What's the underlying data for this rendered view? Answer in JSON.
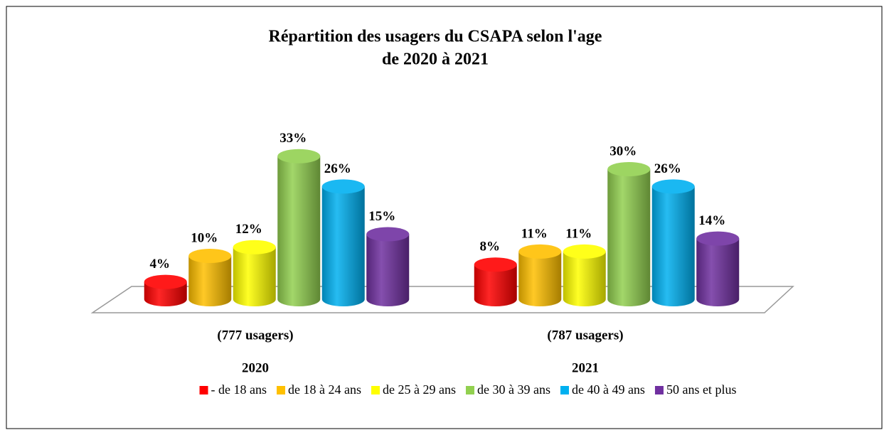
{
  "chart_data": {
    "type": "bar3d",
    "title": "Répartition des usagers du CSAPA selon l'age",
    "subtitle": "de 2020 à 2021",
    "categories": [
      "2020",
      "2021"
    ],
    "category_notes": [
      "(777 usagers)",
      "(787 usagers)"
    ],
    "series": [
      {
        "name": "- de 18 ans",
        "color": "#ff0000",
        "values": [
          4,
          8
        ],
        "value_labels": [
          "4%",
          "8%"
        ]
      },
      {
        "name": "de 18 à 24 ans",
        "color": "#ffc000",
        "values": [
          10,
          11
        ],
        "value_labels": [
          "10%",
          "11%"
        ]
      },
      {
        "name": "de 25 à 29 ans",
        "color": "#ffff00",
        "values": [
          12,
          11
        ],
        "value_labels": [
          "12%",
          "11%"
        ]
      },
      {
        "name": "de 30 à 39 ans",
        "color": "#92d050",
        "values": [
          33,
          30
        ],
        "value_labels": [
          "33%",
          "30%"
        ]
      },
      {
        "name": "de 40 à 49 ans",
        "color": "#00b0f0",
        "values": [
          26,
          26
        ],
        "value_labels": [
          "26%",
          "26%"
        ]
      },
      {
        "name": "50 ans et plus",
        "color": "#7030a0",
        "values": [
          15,
          14
        ],
        "value_labels": [
          "15%",
          "14%"
        ]
      }
    ],
    "legend": "bottom"
  }
}
